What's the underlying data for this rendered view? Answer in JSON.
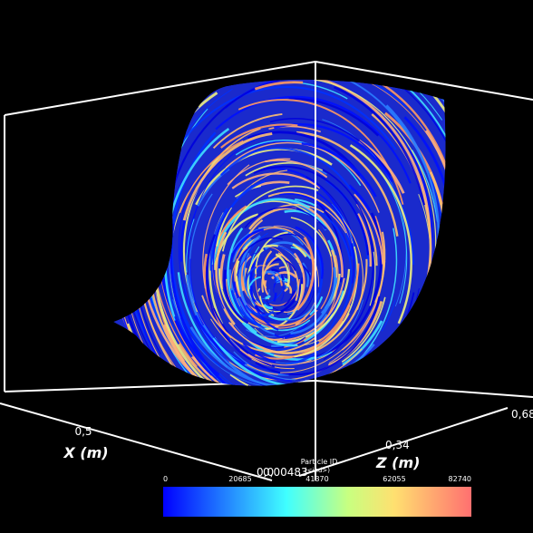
{
  "axes": {
    "x": {
      "title": "X (m)",
      "ticks": [
        "0,5",
        "0,0"
      ]
    },
    "z": {
      "title": "Z (m)",
      "ticks": [
        "0,00483",
        "0,34",
        "0,68"
      ]
    }
  },
  "colorbar": {
    "title": "Particle ID",
    "unit": "(<ind>)",
    "ticks": [
      0,
      20685,
      41370,
      62055,
      82740
    ]
  }
}
